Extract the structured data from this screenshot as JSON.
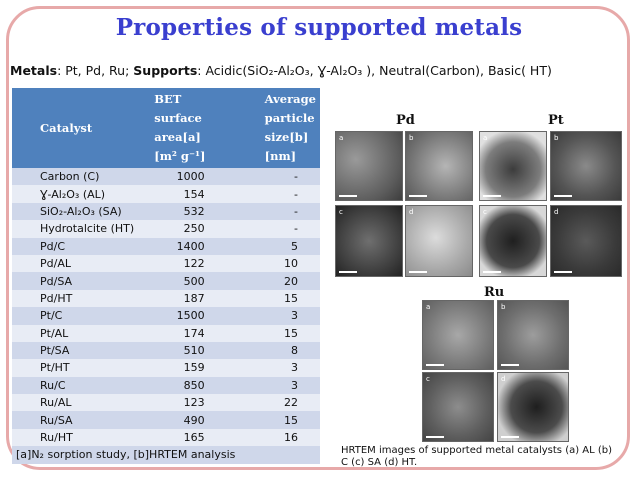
{
  "title": "Properties of supported metals",
  "metals_line": {
    "metals_label": "Metals",
    "metals_text": ": Pt, Pd, Ru; ",
    "supports_label": "Supports",
    "supports_text": ": Acidic(SiO₂-Al₂O₃, Ɣ-Al₂O₃ ), Neutral(Carbon), Basic( HT)"
  },
  "table": {
    "headers": {
      "catalyst": "Catalyst",
      "bet_line1": "BET",
      "bet_line2": "surface",
      "bet_line3": "area[a]",
      "bet_line4": "[m² g⁻¹]",
      "avg_line1": "Average",
      "avg_line2": "particle",
      "avg_line3": "size[b]",
      "avg_line4": "[nm]"
    },
    "rows": [
      {
        "catalyst": "Carbon (C)",
        "bet": "1000",
        "size": "-"
      },
      {
        "catalyst": "Ɣ-Al₂O₃ (AL)",
        "bet": "154",
        "size": "-"
      },
      {
        "catalyst": "SiO₂-Al₂O₃ (SA)",
        "bet": "532",
        "size": "-"
      },
      {
        "catalyst": "Hydrotalcite (HT)",
        "bet": "250",
        "size": "-"
      },
      {
        "catalyst": "Pd/C",
        "bet": "1400",
        "size": "5"
      },
      {
        "catalyst": "Pd/AL",
        "bet": "122",
        "size": "10"
      },
      {
        "catalyst": "Pd/SA",
        "bet": "500",
        "size": "20"
      },
      {
        "catalyst": "Pd/HT",
        "bet": "187",
        "size": "15"
      },
      {
        "catalyst": "Pt/C",
        "bet": "1500",
        "size": "3"
      },
      {
        "catalyst": "Pt/AL",
        "bet": "174",
        "size": "15"
      },
      {
        "catalyst": "Pt/SA",
        "bet": "510",
        "size": "8"
      },
      {
        "catalyst": "Pt/HT",
        "bet": "159",
        "size": "3"
      },
      {
        "catalyst": "Ru/C",
        "bet": "850",
        "size": "3"
      },
      {
        "catalyst": "Ru/AL",
        "bet": "123",
        "size": "22"
      },
      {
        "catalyst": "Ru/SA",
        "bet": "490",
        "size": "15"
      },
      {
        "catalyst": "Ru/HT",
        "bet": "165",
        "size": "16"
      }
    ],
    "footnote": "[a]N₂ sorption study, [b]HRTEM analysis"
  },
  "image_labels": {
    "pd": "Pd",
    "pt": "Pt",
    "ru": "Ru"
  },
  "caption": "HRTEM images of supported metal catalysts (a) AL (b) C (c) SA (d) HT.",
  "colors": {
    "title": "#3a3fcf",
    "header_bg": "#4f81bd",
    "row_odd": "#cfd7ea",
    "row_even": "#e8ecf5",
    "frame_border": "#e7a9a9"
  }
}
